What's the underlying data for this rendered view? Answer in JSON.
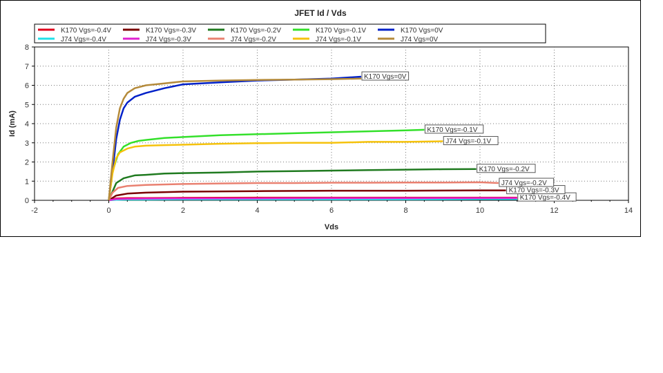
{
  "chart_data": {
    "type": "line",
    "title": "JFET Id / Vds",
    "xlabel": "Vds",
    "ylabel": "Id (mA)",
    "xlim": [
      -2,
      14
    ],
    "ylim": [
      0,
      8
    ],
    "xticks": [
      "-2",
      "0",
      "2",
      "4",
      "6",
      "8",
      "10",
      "12",
      "14"
    ],
    "yticks": [
      "0",
      "1",
      "2",
      "3",
      "4",
      "5",
      "6",
      "7",
      "8"
    ],
    "grid": true,
    "legend_position": "top",
    "series": [
      {
        "name": "K170 Vgs=-0.4V",
        "color": "#e0001b",
        "x": [
          0,
          0.2,
          0.5,
          1,
          2,
          4,
          6,
          8,
          10,
          11
        ],
        "y": [
          0,
          0.1,
          0.12,
          0.12,
          0.13,
          0.14,
          0.14,
          0.14,
          0.14,
          0.14
        ],
        "label": "K170 Vgs=-0.4V"
      },
      {
        "name": "K170 Vgs=-0.3V",
        "color": "#7a0000",
        "x": [
          0,
          0.2,
          0.5,
          1,
          2,
          4,
          6,
          8,
          10,
          10.7
        ],
        "y": [
          0,
          0.25,
          0.35,
          0.4,
          0.45,
          0.48,
          0.5,
          0.5,
          0.52,
          0.52
        ],
        "label": "K170 Vgs=-0.3V"
      },
      {
        "name": "K170 Vgs=-0.2V",
        "color": "#1f7a1f",
        "x": [
          0,
          0.2,
          0.4,
          0.7,
          1,
          1.5,
          2,
          3,
          4,
          5,
          6,
          7,
          8,
          9,
          9.9
        ],
        "y": [
          0,
          0.9,
          1.15,
          1.3,
          1.33,
          1.4,
          1.42,
          1.45,
          1.5,
          1.52,
          1.55,
          1.58,
          1.6,
          1.62,
          1.63
        ],
        "label": "K170 Vgs=-0.2V"
      },
      {
        "name": "K170 Vgs=-0.1V",
        "color": "#33e02a",
        "x": [
          0,
          0.1,
          0.25,
          0.4,
          0.6,
          0.8,
          1,
          1.5,
          2,
          3,
          4,
          5,
          6,
          7,
          8,
          8.5
        ],
        "y": [
          0,
          1.5,
          2.4,
          2.8,
          3.0,
          3.1,
          3.15,
          3.25,
          3.3,
          3.4,
          3.45,
          3.5,
          3.55,
          3.6,
          3.65,
          3.68
        ],
        "label": "K170 Vgs=-0.1V"
      },
      {
        "name": "K170 Vgs=0V",
        "color": "#0020c8",
        "x": [
          0,
          0.1,
          0.2,
          0.3,
          0.4,
          0.5,
          0.7,
          1,
          1.5,
          2,
          3,
          4,
          5,
          6,
          6.8
        ],
        "y": [
          0,
          1.5,
          3.2,
          4.2,
          4.8,
          5.1,
          5.4,
          5.6,
          5.85,
          6.05,
          6.15,
          6.25,
          6.3,
          6.35,
          6.45
        ],
        "label": "K170 Vgs=0V"
      },
      {
        "name": "J74 Vgs=-0.4V",
        "color": "#22e0e8",
        "x": [
          0,
          0.2,
          0.5,
          1,
          2,
          4,
          6,
          8,
          10,
          11
        ],
        "y": [
          0,
          0.03,
          0.04,
          0.04,
          0.05,
          0.05,
          0.05,
          0.05,
          0.06,
          0.06
        ]
      },
      {
        "name": "J74 Vgs=-0.3V",
        "color": "#e020d0",
        "x": [
          0,
          0.2,
          0.5,
          1,
          2,
          4,
          6,
          8,
          10,
          11
        ],
        "y": [
          0,
          0.07,
          0.08,
          0.09,
          0.1,
          0.1,
          0.11,
          0.11,
          0.12,
          0.12
        ]
      },
      {
        "name": "J74 Vgs=-0.2V",
        "color": "#e98070",
        "x": [
          0,
          0.1,
          0.25,
          0.5,
          1,
          2,
          3,
          4,
          5,
          6,
          7,
          8,
          9,
          10,
          10.5
        ],
        "y": [
          0,
          0.4,
          0.65,
          0.75,
          0.8,
          0.85,
          0.88,
          0.9,
          0.9,
          0.92,
          0.92,
          0.93,
          0.93,
          0.94,
          0.9
        ],
        "label": "J74 Vgs=-0.2V"
      },
      {
        "name": "J74 Vgs=-0.1V",
        "color": "#f5c20c",
        "x": [
          0,
          0.1,
          0.2,
          0.3,
          0.5,
          0.7,
          1,
          1.5,
          2,
          3,
          4,
          5,
          6,
          7,
          8,
          9
        ],
        "y": [
          0,
          1.4,
          2.2,
          2.5,
          2.7,
          2.8,
          2.85,
          2.88,
          2.9,
          2.95,
          2.98,
          3.0,
          3.0,
          3.05,
          3.05,
          3.08
        ],
        "label": "J74 Vgs=-0.1V"
      },
      {
        "name": "J74 Vgs=0V",
        "color": "#b48a3a",
        "x": [
          0,
          0.1,
          0.2,
          0.3,
          0.4,
          0.5,
          0.7,
          1,
          1.5,
          2,
          3,
          4,
          5,
          6,
          6.8
        ],
        "y": [
          0,
          2.0,
          3.8,
          4.8,
          5.3,
          5.6,
          5.85,
          6.0,
          6.1,
          6.2,
          6.25,
          6.28,
          6.3,
          6.32,
          6.35
        ]
      }
    ]
  }
}
